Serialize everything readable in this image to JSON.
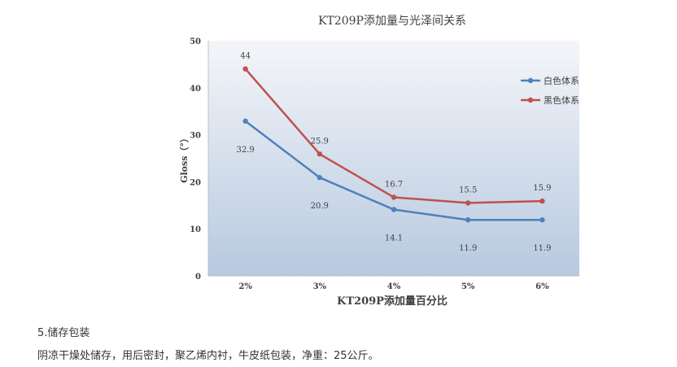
{
  "chart_data": {
    "type": "line",
    "title": "KT209P添加量与光泽间关系",
    "xlabel": "KT209P添加量百分比",
    "ylabel": "Gloss（°）",
    "categories": [
      "2%",
      "3%",
      "4%",
      "5%",
      "6%"
    ],
    "ylim": [
      0,
      50
    ],
    "yticks": [
      0,
      10,
      20,
      30,
      40,
      50
    ],
    "grid": false,
    "legend_position": "right",
    "series": [
      {
        "name": "白色体系",
        "color": "#4f81bd",
        "values": [
          32.9,
          20.9,
          14.1,
          11.9,
          11.9
        ]
      },
      {
        "name": "黑色体系",
        "color": "#c0504d",
        "values": [
          44,
          25.9,
          16.7,
          15.5,
          15.9
        ]
      }
    ]
  },
  "content": {
    "section_title": "5.储存包装",
    "section_body": "阴凉干燥处储存，用后密封，聚乙烯内衬，牛皮纸包装，净重：25公斤。"
  }
}
